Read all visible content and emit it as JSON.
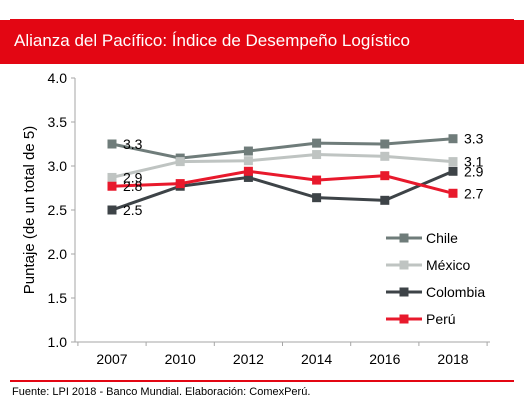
{
  "header": {
    "title": "Alianza del Pacífico: Índice de Desempeño Logístico"
  },
  "footer": {
    "source": "Fuente: LPI 2018 - Banco Mundial. Elaboración: ComexPerú."
  },
  "colors": {
    "title_bar": "#e30613",
    "rule": "#e30613"
  },
  "chart_data": {
    "type": "line",
    "title": "Alianza del Pacífico: Índice de Desempeño Logístico",
    "xlabel": "",
    "ylabel": "Puntaje (de un total de 5)",
    "x": [
      "2007",
      "2010",
      "2012",
      "2014",
      "2016",
      "2018"
    ],
    "ylim": [
      1.0,
      4.0
    ],
    "yticks": [
      "1.0",
      "1.5",
      "2.0",
      "2.5",
      "3.0",
      "3.5",
      "4.0"
    ],
    "legend_position": "right",
    "series": [
      {
        "name": "Chile",
        "color": "#6f7c7a",
        "values": [
          3.25,
          3.09,
          3.17,
          3.26,
          3.25,
          3.31
        ]
      },
      {
        "name": "México",
        "color": "#bfc4c2",
        "values": [
          2.87,
          3.05,
          3.06,
          3.13,
          3.11,
          3.05
        ]
      },
      {
        "name": "Colombia",
        "color": "#3d4347",
        "values": [
          2.5,
          2.77,
          2.87,
          2.64,
          2.61,
          2.94
        ]
      },
      {
        "name": "Perú",
        "color": "#e8192c",
        "values": [
          2.77,
          2.8,
          2.94,
          2.84,
          2.89,
          2.69
        ]
      }
    ],
    "data_labels": [
      {
        "series": "Chile",
        "index": 0,
        "text": "3.3"
      },
      {
        "series": "México",
        "index": 0,
        "text": "2.9"
      },
      {
        "series": "Perú",
        "index": 0,
        "text": "2.8"
      },
      {
        "series": "Colombia",
        "index": 0,
        "text": "2.5"
      },
      {
        "series": "Chile",
        "index": 5,
        "text": "3.3"
      },
      {
        "series": "México",
        "index": 5,
        "text": "3.1"
      },
      {
        "series": "Colombia",
        "index": 5,
        "text": "2.9"
      },
      {
        "series": "Perú",
        "index": 5,
        "text": "2.7"
      }
    ]
  }
}
